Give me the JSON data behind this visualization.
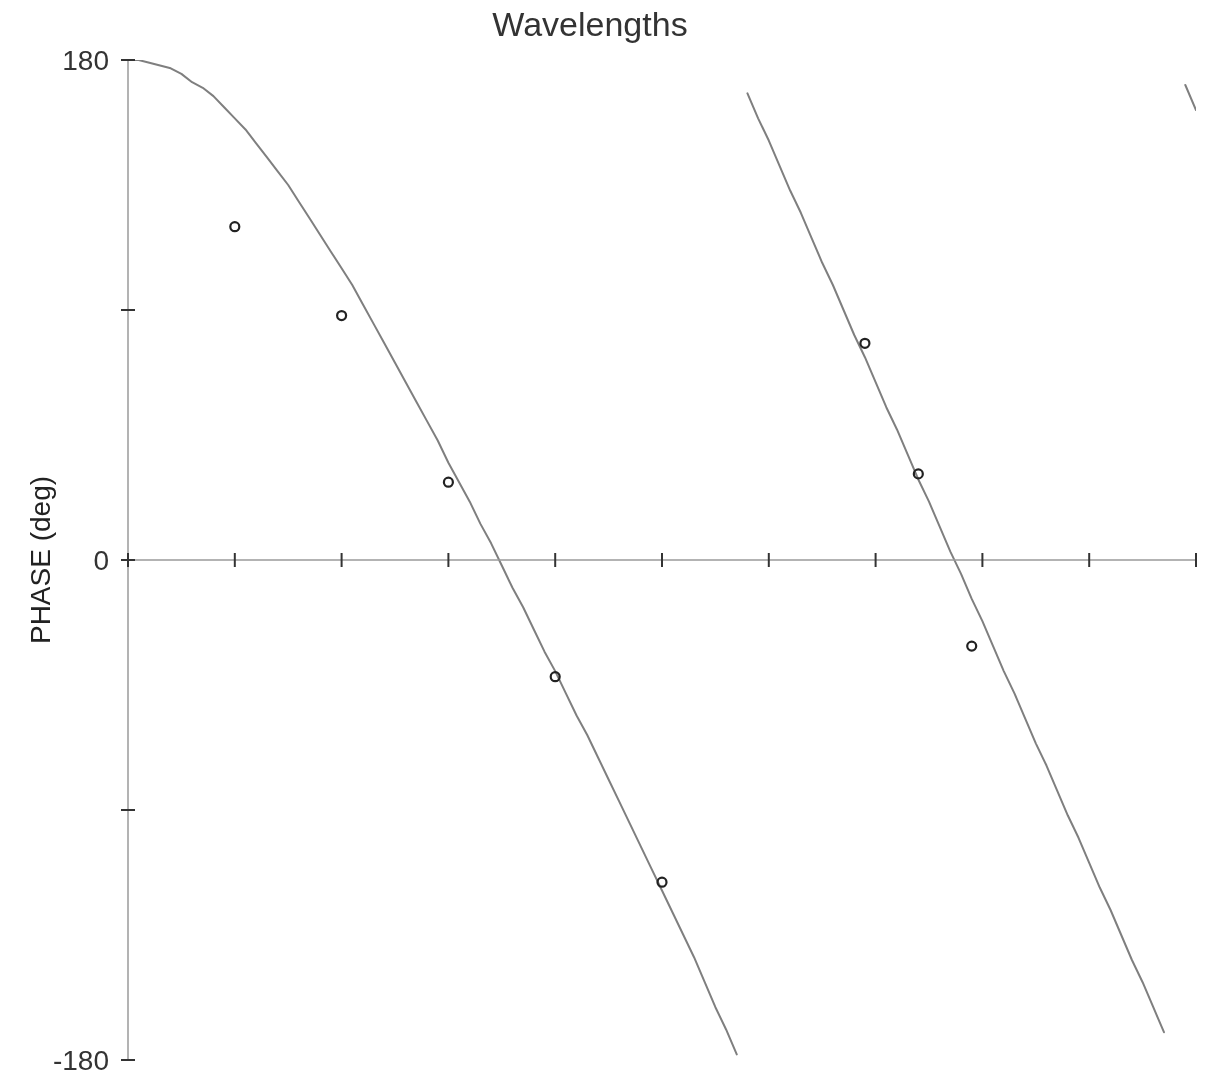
{
  "chart_data": {
    "type": "line",
    "title": "Wavelengths",
    "ylabel": "PHASE (deg)",
    "categories": [
      null,
      null,
      null,
      null,
      null,
      null,
      null,
      null,
      null,
      null,
      null,
      null,
      null,
      null,
      null,
      null,
      null,
      null,
      null,
      null,
      null,
      null,
      null,
      null,
      null,
      null,
      null,
      null,
      null,
      null,
      null,
      null,
      null,
      null,
      null,
      null,
      null,
      null,
      null,
      null,
      null,
      null,
      null,
      null,
      null,
      null,
      null,
      null,
      null,
      null,
      null,
      null,
      null,
      null,
      null,
      null,
      null,
      null,
      null,
      null,
      null,
      null,
      null,
      null,
      null,
      null,
      null,
      null,
      null,
      null,
      null,
      null,
      null,
      null,
      null,
      null,
      null,
      null,
      null,
      null,
      null,
      null,
      null,
      null,
      null,
      null,
      null,
      null,
      null,
      null,
      null,
      null,
      null,
      null,
      null,
      null,
      null,
      null,
      null,
      null,
      null
    ],
    "ylim": [
      -180,
      180
    ],
    "yticks": [
      -180,
      {
        "value": -90,
        "label": null
      },
      0,
      {
        "value": 90,
        "label": null
      },
      180
    ],
    "tick_labels": "y",
    "series": [
      {
        "color": "#7f7f7f",
        "marker": "none",
        "line_style": "solid",
        "values": [
          180,
          180,
          179,
          178,
          177,
          175,
          172,
          170,
          167,
          163,
          159,
          155,
          150,
          145,
          140,
          135,
          129,
          123,
          117,
          111,
          105,
          99,
          92,
          85,
          78,
          71,
          64,
          57,
          50,
          43,
          35,
          28,
          21,
          13,
          6,
          -2,
          -10,
          -17,
          -25,
          -33,
          -40,
          -48,
          -56,
          -63,
          -71,
          -79,
          -87,
          -95,
          -103,
          -111,
          -119,
          -127,
          -135,
          -143,
          -152,
          -161,
          -169,
          -178,
          null,
          null,
          null,
          null,
          null,
          null,
          null,
          null,
          null,
          null,
          null,
          null,
          null,
          null,
          null,
          null,
          null,
          null,
          null,
          null,
          null,
          null,
          null,
          null,
          null,
          null,
          null,
          null,
          null,
          null,
          null,
          null,
          null,
          null,
          null,
          null,
          null,
          null,
          null,
          null,
          null,
          null,
          null
        ]
      },
      {
        "color": "#7f7f7f",
        "marker": "none",
        "line_style": "solid",
        "values": [
          null,
          null,
          null,
          null,
          null,
          null,
          null,
          null,
          null,
          null,
          null,
          null,
          null,
          null,
          null,
          null,
          null,
          null,
          null,
          null,
          null,
          null,
          null,
          null,
          null,
          null,
          null,
          null,
          null,
          null,
          null,
          null,
          null,
          null,
          null,
          null,
          null,
          null,
          null,
          null,
          null,
          null,
          null,
          null,
          null,
          null,
          null,
          null,
          null,
          null,
          null,
          null,
          null,
          null,
          null,
          null,
          null,
          null,
          168,
          159,
          151,
          142,
          133,
          125,
          116,
          107,
          99,
          90,
          81,
          73,
          64,
          55,
          47,
          38,
          29,
          21,
          12,
          3,
          -5,
          -14,
          -22,
          -31,
          -40,
          -48,
          -57,
          -66,
          -74,
          -83,
          -92,
          -100,
          -109,
          -118,
          -126,
          -135,
          -144,
          -152,
          -161,
          -170,
          null,
          null,
          null
        ]
      },
      {
        "color": "#7f7f7f",
        "marker": "none",
        "line_style": "solid",
        "values": [
          null,
          null,
          null,
          null,
          null,
          null,
          null,
          null,
          null,
          null,
          null,
          null,
          null,
          null,
          null,
          null,
          null,
          null,
          null,
          null,
          null,
          null,
          null,
          null,
          null,
          null,
          null,
          null,
          null,
          null,
          null,
          null,
          null,
          null,
          null,
          null,
          null,
          null,
          null,
          null,
          null,
          null,
          null,
          null,
          null,
          null,
          null,
          null,
          null,
          null,
          null,
          null,
          null,
          null,
          null,
          null,
          null,
          null,
          null,
          null,
          null,
          null,
          null,
          null,
          null,
          null,
          null,
          null,
          null,
          null,
          null,
          null,
          null,
          null,
          null,
          null,
          null,
          null,
          null,
          null,
          null,
          null,
          null,
          null,
          null,
          null,
          null,
          null,
          null,
          null,
          null,
          null,
          null,
          null,
          null,
          null,
          null,
          null,
          null,
          171,
          162
        ]
      },
      {
        "type": "scatter",
        "color": "#222222",
        "marker": "circle",
        "values": [
          null,
          null,
          null,
          null,
          null,
          null,
          null,
          null,
          null,
          null,
          120,
          null,
          null,
          null,
          null,
          null,
          null,
          null,
          null,
          null,
          88,
          null,
          null,
          null,
          null,
          null,
          null,
          null,
          null,
          null,
          28,
          null,
          null,
          null,
          null,
          null,
          null,
          null,
          null,
          null,
          -42,
          null,
          null,
          null,
          null,
          null,
          null,
          null,
          null,
          null,
          -116,
          null,
          null,
          null,
          null,
          null,
          null,
          null,
          null,
          null,
          null,
          null,
          null,
          null,
          null,
          null,
          null,
          null,
          null,
          78,
          null,
          null,
          null,
          null,
          31,
          null,
          null,
          null,
          null,
          -31,
          null,
          null,
          null,
          null,
          null,
          null,
          null,
          null,
          null,
          null,
          null,
          null,
          null,
          null,
          null,
          null,
          null,
          null,
          null,
          null,
          null
        ]
      }
    ]
  }
}
